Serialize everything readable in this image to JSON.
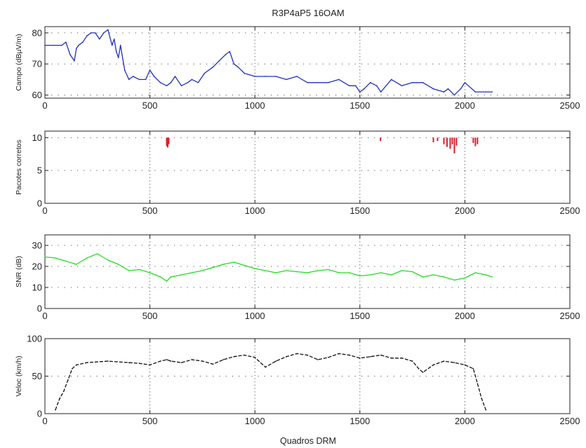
{
  "figure": {
    "title": "R3P4aP5 16OAM",
    "xlabel": "Quadros DRM"
  },
  "chart_data": [
    {
      "type": "line",
      "ylabel": "Campo (dBμV/m)",
      "xlim": [
        0,
        2500
      ],
      "ylim": [
        59,
        82
      ],
      "xticks": [
        0,
        500,
        1000,
        1500,
        2000,
        2500
      ],
      "yticks": [
        60,
        70,
        80
      ],
      "grid": true,
      "color": "#1f2fc0",
      "style": "solid",
      "series": [
        {
          "x": [
            0,
            40,
            80,
            100,
            120,
            140,
            150,
            160,
            180,
            200,
            220,
            240,
            260,
            280,
            300,
            320,
            330,
            340,
            350,
            360,
            380,
            400,
            420,
            450,
            480,
            500,
            520,
            550,
            580,
            600,
            620,
            650,
            680,
            700,
            730,
            760,
            800,
            830,
            860,
            880,
            900,
            920,
            950,
            1000,
            1050,
            1100,
            1150,
            1200,
            1250,
            1300,
            1350,
            1400,
            1450,
            1480,
            1500,
            1520,
            1550,
            1580,
            1600,
            1650,
            1700,
            1750,
            1800,
            1850,
            1900,
            1920,
            1950,
            1980,
            2000,
            2050,
            2100,
            2130
          ],
          "y": [
            76,
            76,
            76,
            77,
            73,
            71,
            75,
            76,
            77,
            79,
            80,
            80,
            78,
            80,
            81,
            76,
            78,
            74,
            72,
            76,
            68,
            65,
            66,
            65,
            65,
            68,
            66,
            64,
            63,
            64,
            66,
            63,
            64,
            65,
            64,
            67,
            69,
            71,
            73,
            74,
            70,
            69,
            67,
            66,
            66,
            66,
            65,
            66,
            64,
            64,
            64,
            65,
            63,
            63,
            61,
            62,
            64,
            63,
            61,
            65,
            63,
            64,
            64,
            62,
            61,
            62,
            60,
            62,
            64,
            61,
            61,
            61
          ]
        }
      ]
    },
    {
      "type": "bar",
      "ylabel": "Pacotes corretos",
      "xlim": [
        0,
        2500
      ],
      "ylim": [
        0,
        11
      ],
      "xticks": [
        0,
        500,
        1000,
        1500,
        2000,
        2500
      ],
      "yticks": [
        0,
        5,
        10
      ],
      "grid": true,
      "color": "#d8202a",
      "style": "dips from 10",
      "series": [
        {
          "x": [
            580,
            585,
            590,
            1598,
            1850,
            1870,
            1900,
            1915,
            1930,
            1940,
            1950,
            1960,
            2040,
            2050,
            2060
          ],
          "y": [
            8.7,
            8.5,
            9.0,
            9.5,
            9.3,
            9.5,
            9.0,
            8.6,
            8.3,
            9.0,
            7.6,
            8.8,
            9.2,
            8.7,
            9.0
          ]
        }
      ]
    },
    {
      "type": "line",
      "ylabel": "SNR (dB)",
      "xlim": [
        0,
        2500
      ],
      "ylim": [
        0,
        35
      ],
      "xticks": [
        0,
        500,
        1000,
        1500,
        2000,
        2500
      ],
      "yticks": [
        0,
        10,
        20,
        30
      ],
      "grid": true,
      "color": "#22dd22",
      "style": "solid",
      "series": [
        {
          "x": [
            0,
            50,
            100,
            150,
            200,
            250,
            300,
            350,
            400,
            450,
            500,
            550,
            580,
            600,
            650,
            700,
            750,
            800,
            850,
            900,
            950,
            1000,
            1050,
            1100,
            1150,
            1200,
            1250,
            1300,
            1350,
            1400,
            1450,
            1500,
            1550,
            1600,
            1650,
            1700,
            1750,
            1800,
            1850,
            1900,
            1950,
            2000,
            2050,
            2100,
            2130
          ],
          "y": [
            24.5,
            24,
            22.5,
            21,
            24,
            26,
            23,
            21,
            18,
            18.5,
            17,
            15,
            13,
            15,
            16,
            17,
            18,
            19.5,
            21,
            22,
            20.5,
            19,
            18,
            17,
            18,
            17.5,
            17,
            18,
            18.5,
            17,
            17,
            15.5,
            16,
            17,
            16,
            18,
            17.5,
            15,
            16,
            15,
            13.5,
            14.5,
            17,
            16,
            15
          ]
        }
      ]
    },
    {
      "type": "line",
      "ylabel": "Veloc (km/h)",
      "xlim": [
        0,
        2500
      ],
      "ylim": [
        0,
        100
      ],
      "xticks": [
        0,
        500,
        1000,
        1500,
        2000,
        2500
      ],
      "yticks": [
        0,
        50,
        100
      ],
      "grid": true,
      "color": "#111111",
      "style": "dashed",
      "series": [
        {
          "x": [
            50,
            70,
            90,
            110,
            130,
            150,
            200,
            300,
            400,
            450,
            500,
            550,
            580,
            600,
            650,
            700,
            750,
            800,
            850,
            900,
            950,
            1000,
            1050,
            1100,
            1150,
            1200,
            1250,
            1300,
            1350,
            1400,
            1450,
            1500,
            1550,
            1600,
            1650,
            1700,
            1750,
            1780,
            1800,
            1850,
            1900,
            1950,
            2000,
            2040,
            2060,
            2080,
            2100
          ],
          "y": [
            5,
            20,
            30,
            45,
            60,
            65,
            68,
            70,
            68,
            67,
            65,
            70,
            72,
            70,
            68,
            72,
            70,
            66,
            72,
            76,
            78,
            75,
            62,
            70,
            76,
            80,
            78,
            72,
            75,
            80,
            78,
            74,
            76,
            78,
            74,
            74,
            70,
            60,
            55,
            65,
            70,
            68,
            65,
            60,
            40,
            20,
            5
          ]
        }
      ]
    }
  ]
}
